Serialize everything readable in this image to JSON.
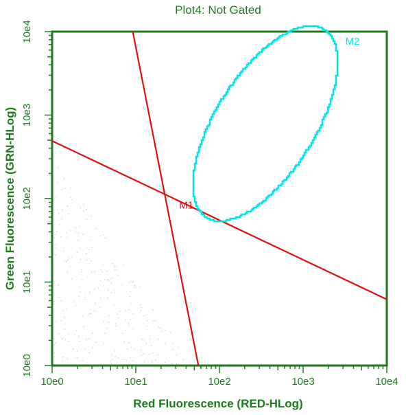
{
  "chart_data": {
    "type": "scatter",
    "title": "Plot4:  Not Gated",
    "xlabel": "Red Fluorescence (RED-HLog)",
    "ylabel": "Green Fluorescence (GRN-HLog)",
    "x_scale": "log",
    "y_scale": "log",
    "xlim": [
      1,
      10000
    ],
    "ylim": [
      1,
      10000
    ],
    "x_tick_labels": [
      "10e0",
      "10e1",
      "10e2",
      "10e3",
      "10e4"
    ],
    "y_tick_labels": [
      "10e0",
      "10e1",
      "10e2",
      "10e3",
      "10e4"
    ],
    "grid": false,
    "colors": {
      "axis": "#1e7a1e",
      "text": "#1e7a1e",
      "marker_m1": "#dd1111",
      "marker_m2": "#00e5e5"
    },
    "markers": [
      {
        "name": "M1",
        "shape": "quadrant",
        "color": "#dd1111",
        "lines": [
          {
            "from": [
              9.2,
              10000
            ],
            "to": [
              56,
              1
            ]
          },
          {
            "from": [
              1,
              490
            ],
            "to": [
              10000,
              6.2
            ]
          }
        ],
        "label_at": [
          33,
          76
        ]
      },
      {
        "name": "M2",
        "shape": "ellipse",
        "color": "#00e5e5",
        "center_log": [
          2.55,
          2.9
        ],
        "semi_axes_log": [
          1.32,
          0.6
        ],
        "rotation_deg": 58,
        "label_at": [
          3200,
          7000
        ]
      }
    ]
  }
}
